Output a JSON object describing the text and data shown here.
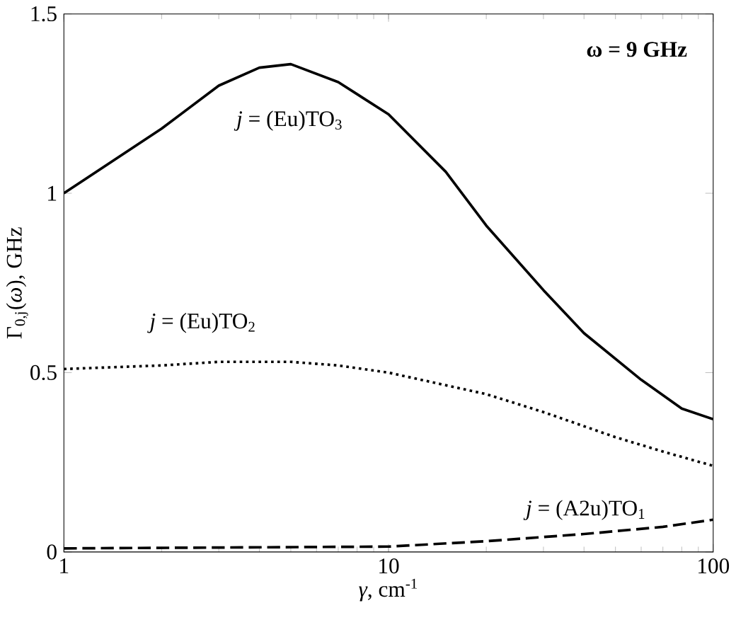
{
  "chart_data": {
    "type": "line",
    "xlabel": "*γ*, cm$^{-1}$",
    "ylabel": "Γ$_{0,j}$(*ω*), GHz",
    "annotations": [
      "**ω = 9 GHz**"
    ],
    "log": "x",
    "xlim": [
      1,
      100
    ],
    "ylim": [
      0,
      1.5
    ],
    "xticks": [
      1,
      10,
      100
    ],
    "yticks": [
      0,
      0.5,
      1,
      1.5
    ],
    "grid": false,
    "legend": false,
    "marker": "none",
    "series": [
      {
        "name": "*j* = (Eu)TO$_{3}$",
        "color": "#000000",
        "line_style": "solid",
        "x": [
          1,
          2,
          3,
          4,
          5,
          7,
          10,
          15,
          20,
          30,
          40,
          60,
          80,
          100
        ],
        "values": [
          1.0,
          1.18,
          1.3,
          1.35,
          1.36,
          1.31,
          1.22,
          1.06,
          0.91,
          0.73,
          0.61,
          0.48,
          0.4,
          0.37
        ]
      },
      {
        "name": "*j* = (Eu)TO$_{2}$",
        "color": "#000000",
        "line_style": "dotted",
        "x": [
          1,
          2,
          3,
          5,
          7,
          10,
          20,
          30,
          50,
          70,
          100
        ],
        "values": [
          0.51,
          0.52,
          0.53,
          0.53,
          0.52,
          0.5,
          0.44,
          0.39,
          0.32,
          0.28,
          0.24
        ]
      },
      {
        "name": "*j* = (A2u)TO$_{1}$",
        "color": "#000000",
        "line_style": "dashed",
        "x": [
          1,
          10,
          20,
          40,
          70,
          100
        ],
        "values": [
          0.01,
          0.015,
          0.03,
          0.05,
          0.07,
          0.09
        ]
      }
    ]
  }
}
